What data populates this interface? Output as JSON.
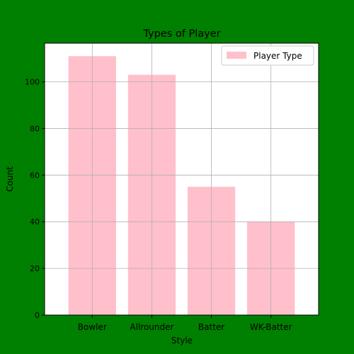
{
  "colors": {
    "figure_background": "#008000",
    "plot_background": "#ffffff",
    "bar_fill": "#ffc0cb",
    "grid": "#b0b0b0",
    "axis": "#000000"
  },
  "chart_data": {
    "type": "bar",
    "title": "Types of Player",
    "xlabel": "Style",
    "ylabel": "Count",
    "categories": [
      "Bowler",
      "Allrounder",
      "Batter",
      "WK-Batter"
    ],
    "series": [
      {
        "name": "Player Type",
        "values": [
          111,
          103,
          55,
          40
        ]
      }
    ],
    "ylim": [
      0,
      116.55
    ],
    "yticks": [
      0,
      20,
      40,
      60,
      80,
      100
    ],
    "grid": true,
    "legend_position": "top-right"
  }
}
